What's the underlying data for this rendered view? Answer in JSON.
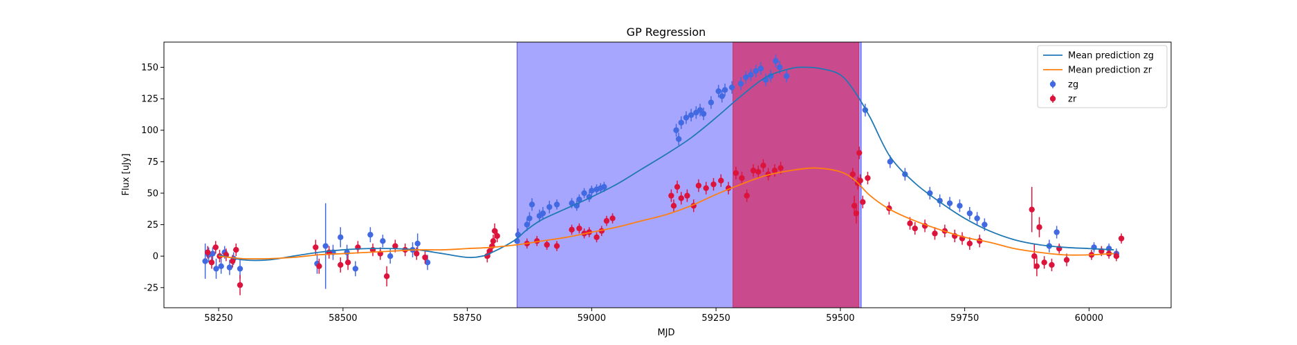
{
  "chart_data": {
    "type": "scatter",
    "title": "GP Regression",
    "xlabel": "MJD",
    "ylabel": "Flux [uJy]",
    "xlim": [
      58140,
      60165
    ],
    "ylim": [
      -41,
      170
    ],
    "xticks": [
      58250,
      58500,
      58750,
      59000,
      59250,
      59500,
      59750,
      60000
    ],
    "yticks": [
      -25,
      0,
      25,
      50,
      75,
      100,
      125,
      150
    ],
    "legend_position": "top-right",
    "shaded_regions": [
      {
        "x0": 58850,
        "x1": 59542,
        "color": "#0000ff",
        "opacity": 0.35
      },
      {
        "x0": 59284,
        "x1": 59537,
        "color": "#e8002f",
        "opacity": 0.55
      }
    ],
    "lines": [
      {
        "name": "Mean prediction zg",
        "color": "#1f77b4",
        "x": [
          58250,
          58300,
          58350,
          58400,
          58450,
          58500,
          58550,
          58600,
          58650,
          58700,
          58750,
          58780,
          58800,
          58830,
          58850,
          58870,
          58900,
          58950,
          59000,
          59050,
          59100,
          59150,
          59200,
          59250,
          59300,
          59350,
          59400,
          59430,
          59460,
          59500,
          59530,
          59560,
          59600,
          59650,
          59700,
          59750,
          59800,
          59850,
          59900,
          59950,
          60000,
          60050
        ],
        "y": [
          1,
          -3,
          -3,
          0,
          3,
          5,
          6,
          6,
          5,
          2,
          -1,
          0,
          3,
          9,
          14,
          21,
          29,
          38,
          47,
          57,
          69,
          81,
          94,
          110,
          127,
          142,
          149,
          150,
          149,
          144,
          130,
          110,
          79,
          58,
          43,
          30,
          20,
          13,
          9,
          7,
          6,
          5
        ]
      },
      {
        "name": "Mean prediction zr",
        "color": "#ff7f0e",
        "x": [
          58250,
          58300,
          58350,
          58400,
          58450,
          58500,
          58550,
          58600,
          58650,
          58700,
          58750,
          58800,
          58850,
          58900,
          58950,
          59000,
          59050,
          59100,
          59150,
          59200,
          59250,
          59300,
          59350,
          59400,
          59450,
          59500,
          59530,
          59560,
          59600,
          59650,
          59700,
          59750,
          59800,
          59850,
          59900,
          59950,
          60000,
          60050
        ],
        "y": [
          0,
          -2,
          -2,
          -1,
          1,
          2,
          3,
          4,
          5,
          5,
          6,
          7,
          9,
          12,
          15,
          19,
          23,
          28,
          33,
          40,
          49,
          57,
          64,
          68,
          70,
          67,
          60,
          48,
          37,
          28,
          21,
          15,
          11,
          6,
          3,
          1,
          1,
          2
        ]
      }
    ],
    "series": [
      {
        "name": "zg",
        "color": "#4169e1",
        "points": [
          [
            58223,
            -4,
            14
          ],
          [
            58230,
            1,
            6
          ],
          [
            58238,
            2,
            5
          ],
          [
            58245,
            -10,
            8
          ],
          [
            58255,
            -8,
            6
          ],
          [
            58262,
            3,
            5
          ],
          [
            58272,
            -9,
            6
          ],
          [
            58280,
            -2,
            5
          ],
          [
            58293,
            -10,
            8
          ],
          [
            58448,
            -6,
            8
          ],
          [
            58465,
            8,
            34
          ],
          [
            58480,
            3,
            6
          ],
          [
            58495,
            15,
            8
          ],
          [
            58508,
            3,
            6
          ],
          [
            58525,
            -10,
            6
          ],
          [
            58555,
            17,
            6
          ],
          [
            58580,
            12,
            5
          ],
          [
            58595,
            0,
            6
          ],
          [
            58640,
            5,
            6
          ],
          [
            58650,
            10,
            8
          ],
          [
            58670,
            -5,
            6
          ],
          [
            58850,
            12,
            5
          ],
          [
            58852,
            17,
            5
          ],
          [
            58870,
            25,
            5
          ],
          [
            58875,
            30,
            5
          ],
          [
            58880,
            41,
            5
          ],
          [
            58895,
            32,
            5
          ],
          [
            58902,
            34,
            5
          ],
          [
            58915,
            39,
            5
          ],
          [
            58930,
            41,
            4
          ],
          [
            58960,
            42,
            4
          ],
          [
            58970,
            40,
            4
          ],
          [
            58975,
            45,
            4
          ],
          [
            58985,
            50,
            4
          ],
          [
            58995,
            47,
            4
          ],
          [
            59000,
            52,
            4
          ],
          [
            59010,
            53,
            4
          ],
          [
            59018,
            54,
            4
          ],
          [
            59025,
            55,
            4
          ],
          [
            59170,
            100,
            5
          ],
          [
            59175,
            93,
            5
          ],
          [
            59180,
            106,
            5
          ],
          [
            59190,
            110,
            5
          ],
          [
            59200,
            112,
            5
          ],
          [
            59210,
            114,
            5
          ],
          [
            59218,
            116,
            5
          ],
          [
            59225,
            113,
            5
          ],
          [
            59240,
            122,
            5
          ],
          [
            59255,
            131,
            5
          ],
          [
            59262,
            127,
            5
          ],
          [
            59268,
            132,
            5
          ],
          [
            59282,
            134,
            5
          ],
          [
            59300,
            137,
            5
          ],
          [
            59310,
            142,
            5
          ],
          [
            59320,
            144,
            5
          ],
          [
            59330,
            147,
            5
          ],
          [
            59340,
            149,
            5
          ],
          [
            59350,
            140,
            5
          ],
          [
            59360,
            143,
            5
          ],
          [
            59370,
            155,
            5
          ],
          [
            59378,
            150,
            5
          ],
          [
            59392,
            143,
            5
          ],
          [
            59550,
            116,
            5
          ],
          [
            59600,
            75,
            5
          ],
          [
            59630,
            65,
            5
          ],
          [
            59680,
            50,
            5
          ],
          [
            59700,
            44,
            5
          ],
          [
            59720,
            42,
            5
          ],
          [
            59740,
            40,
            5
          ],
          [
            59760,
            34,
            5
          ],
          [
            59775,
            30,
            5
          ],
          [
            59790,
            25,
            5
          ],
          [
            59920,
            8,
            5
          ],
          [
            59935,
            19,
            5
          ],
          [
            60010,
            7,
            4
          ],
          [
            60040,
            6,
            4
          ],
          [
            60055,
            2,
            4
          ]
        ]
      },
      {
        "name": "zr",
        "color": "#dc143c",
        "points": [
          [
            58228,
            3,
            5
          ],
          [
            58236,
            -5,
            5
          ],
          [
            58244,
            7,
            5
          ],
          [
            58252,
            0,
            5
          ],
          [
            58265,
            1,
            5
          ],
          [
            58278,
            -4,
            5
          ],
          [
            58285,
            5,
            5
          ],
          [
            58293,
            -23,
            8
          ],
          [
            58445,
            7,
            6
          ],
          [
            58452,
            -8,
            6
          ],
          [
            58472,
            3,
            5
          ],
          [
            58495,
            -7,
            6
          ],
          [
            58510,
            -5,
            6
          ],
          [
            58530,
            7,
            5
          ],
          [
            58560,
            5,
            5
          ],
          [
            58575,
            2,
            5
          ],
          [
            58588,
            -16,
            8
          ],
          [
            58605,
            8,
            5
          ],
          [
            58625,
            5,
            5
          ],
          [
            58648,
            2,
            5
          ],
          [
            58665,
            -1,
            5
          ],
          [
            58790,
            0,
            5
          ],
          [
            58795,
            4,
            5
          ],
          [
            58800,
            8,
            5
          ],
          [
            58802,
            12,
            5
          ],
          [
            58805,
            20,
            6
          ],
          [
            58810,
            16,
            5
          ],
          [
            58870,
            10,
            4
          ],
          [
            58890,
            12,
            4
          ],
          [
            58910,
            9,
            4
          ],
          [
            58930,
            8,
            4
          ],
          [
            58960,
            21,
            4
          ],
          [
            58975,
            22,
            4
          ],
          [
            58985,
            18,
            4
          ],
          [
            58995,
            19,
            4
          ],
          [
            59010,
            15,
            4
          ],
          [
            59020,
            20,
            4
          ],
          [
            59030,
            28,
            4
          ],
          [
            59042,
            30,
            4
          ],
          [
            59160,
            48,
            5
          ],
          [
            59165,
            40,
            5
          ],
          [
            59172,
            55,
            5
          ],
          [
            59180,
            46,
            5
          ],
          [
            59192,
            48,
            5
          ],
          [
            59205,
            40,
            5
          ],
          [
            59215,
            56,
            5
          ],
          [
            59230,
            54,
            5
          ],
          [
            59245,
            57,
            5
          ],
          [
            59260,
            60,
            5
          ],
          [
            59275,
            54,
            5
          ],
          [
            59290,
            66,
            5
          ],
          [
            59302,
            62,
            5
          ],
          [
            59312,
            48,
            5
          ],
          [
            59325,
            68,
            5
          ],
          [
            59335,
            67,
            5
          ],
          [
            59345,
            72,
            5
          ],
          [
            59355,
            65,
            5
          ],
          [
            59368,
            68,
            5
          ],
          [
            59380,
            70,
            5
          ],
          [
            59525,
            65,
            5
          ],
          [
            59528,
            40,
            8
          ],
          [
            59532,
            34,
            8
          ],
          [
            59535,
            58,
            5
          ],
          [
            59538,
            82,
            5
          ],
          [
            59540,
            60,
            5
          ],
          [
            59545,
            43,
            5
          ],
          [
            59555,
            62,
            5
          ],
          [
            59598,
            38,
            5
          ],
          [
            59640,
            26,
            5
          ],
          [
            59650,
            22,
            5
          ],
          [
            59670,
            24,
            5
          ],
          [
            59690,
            18,
            5
          ],
          [
            59710,
            20,
            5
          ],
          [
            59730,
            16,
            5
          ],
          [
            59745,
            14,
            5
          ],
          [
            59760,
            10,
            5
          ],
          [
            59780,
            12,
            5
          ],
          [
            59885,
            37,
            18
          ],
          [
            59890,
            0,
            10
          ],
          [
            59895,
            -8,
            8
          ],
          [
            59900,
            23,
            8
          ],
          [
            59910,
            -5,
            5
          ],
          [
            59925,
            -7,
            5
          ],
          [
            59940,
            6,
            4
          ],
          [
            59955,
            -3,
            5
          ],
          [
            60005,
            1,
            4
          ],
          [
            60025,
            4,
            4
          ],
          [
            60040,
            2,
            4
          ],
          [
            60055,
            0,
            4
          ],
          [
            60065,
            14,
            4
          ]
        ]
      }
    ]
  }
}
